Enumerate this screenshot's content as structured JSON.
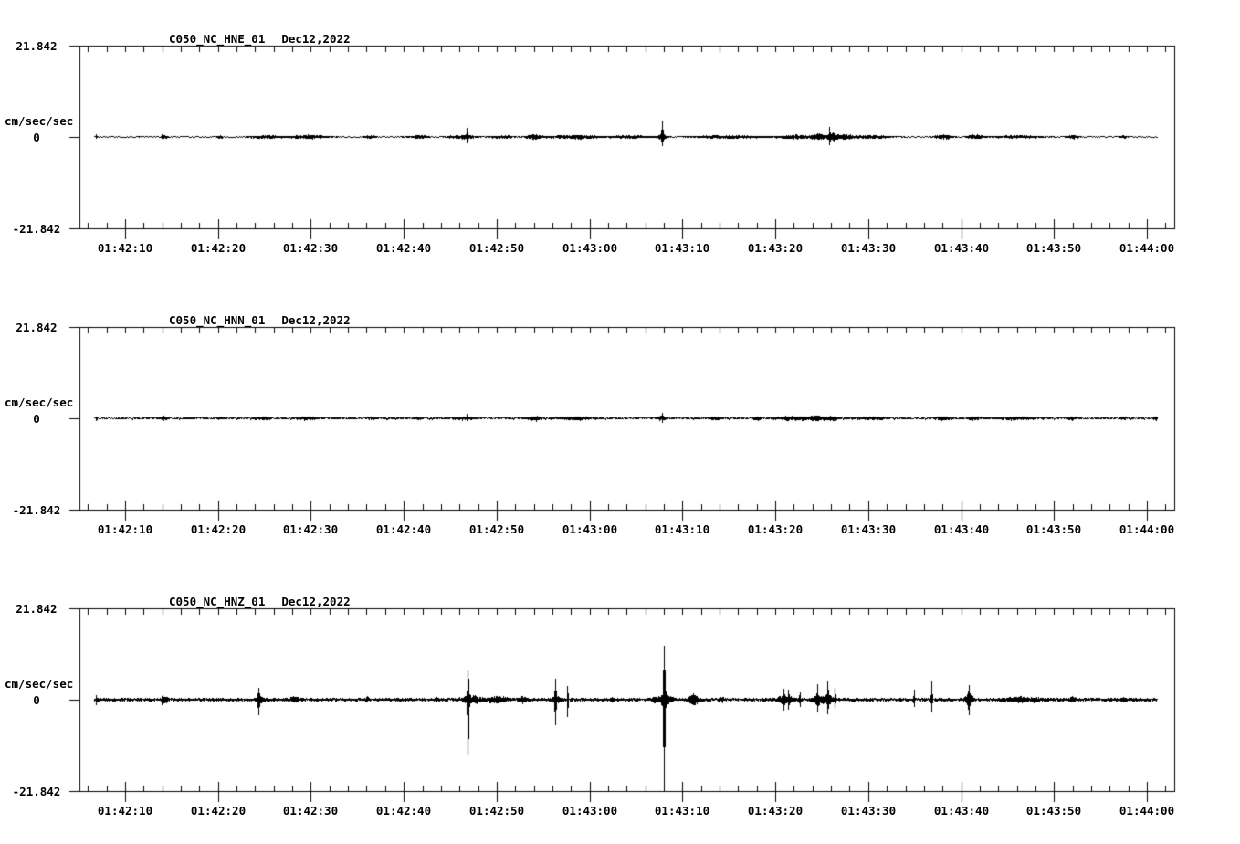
{
  "figure": {
    "background_color": "#ffffff",
    "ink_color": "#000000",
    "units": "cm/sec/sec",
    "full_scale": 21.842
  },
  "chart_data": [
    {
      "type": "line",
      "title": "C050_NC_HNE_01",
      "date": "Dec12,2022",
      "ylabel": "cm/sec/sec",
      "y_tick_labels": [
        "21.842",
        "0",
        "-21.842"
      ],
      "ylim": [
        -21.842,
        21.842
      ],
      "x_tick_labels": [
        "01:42:10",
        "01:42:20",
        "01:42:30",
        "01:42:40",
        "01:42:50",
        "01:43:00",
        "01:43:10",
        "01:43:20",
        "01:43:30",
        "01:43:40",
        "01:43:50",
        "01:44:00"
      ],
      "x_minor_tick_sec": 2,
      "x_major_tick_sec": 10,
      "trace_start_sec": -3.34,
      "trace_end_sec": 111.1,
      "seed": 11,
      "base_noise": 0.11,
      "event_fields": [
        "t_sec_after_01:42:10",
        "amp_up_cmss",
        "amp_down_cmss",
        "half_width_sec",
        "kind"
      ],
      "events": [
        [
          -3.1,
          0.43,
          0.43,
          0.08,
          "spike"
        ],
        [
          4.0,
          0.65,
          0.65,
          0.7,
          "arrow"
        ],
        [
          10.2,
          0.32,
          0.32,
          0.3,
          "burst"
        ],
        [
          15.0,
          0.43,
          0.43,
          1.5,
          "burst"
        ],
        [
          19.5,
          0.43,
          0.43,
          2.2,
          "burst"
        ],
        [
          26.3,
          0.32,
          0.32,
          0.6,
          "burst"
        ],
        [
          31.5,
          0.32,
          0.32,
          1.2,
          "burst"
        ],
        [
          36.3,
          0.43,
          0.43,
          1.5,
          "burst"
        ],
        [
          36.8,
          1.73,
          1.08,
          0.15,
          "spike"
        ],
        [
          40.5,
          0.32,
          0.32,
          1.2,
          "burst"
        ],
        [
          44.0,
          0.65,
          0.65,
          0.8,
          "burst"
        ],
        [
          48.5,
          0.43,
          0.43,
          2.8,
          "burst"
        ],
        [
          54.5,
          0.32,
          0.32,
          2.0,
          "burst"
        ],
        [
          57.8,
          3.46,
          1.73,
          0.15,
          "spike"
        ],
        [
          57.8,
          0.65,
          0.65,
          0.5,
          "burst"
        ],
        [
          65.0,
          0.32,
          0.32,
          4.0,
          "burst"
        ],
        [
          72.0,
          0.43,
          0.43,
          1.5,
          "burst"
        ],
        [
          74.5,
          0.76,
          0.76,
          0.8,
          "burst"
        ],
        [
          75.8,
          1.95,
          1.73,
          0.12,
          "spike"
        ],
        [
          76.1,
          0.86,
          0.86,
          0.6,
          "burst"
        ],
        [
          77.5,
          0.54,
          0.54,
          1.0,
          "burst"
        ],
        [
          80.5,
          0.4,
          0.4,
          1.8,
          "burst"
        ],
        [
          88.0,
          0.54,
          0.54,
          0.9,
          "burst"
        ],
        [
          91.5,
          0.54,
          0.54,
          0.8,
          "burst"
        ],
        [
          96.0,
          0.32,
          0.32,
          2.5,
          "burst"
        ],
        [
          102.0,
          0.43,
          0.43,
          0.6,
          "burst"
        ],
        [
          107.5,
          0.32,
          0.32,
          0.4,
          "burst"
        ]
      ]
    },
    {
      "type": "line",
      "title": "C050_NC_HNN_01",
      "date": "Dec12,2022",
      "ylabel": "cm/sec/sec",
      "y_tick_labels": [
        "21.842",
        "0",
        "-21.842"
      ],
      "ylim": [
        -21.842,
        21.842
      ],
      "x_tick_labels": [
        "01:42:10",
        "01:42:20",
        "01:42:30",
        "01:42:40",
        "01:42:50",
        "01:43:00",
        "01:43:10",
        "01:43:20",
        "01:43:30",
        "01:43:40",
        "01:43:50",
        "01:44:00"
      ],
      "x_minor_tick_sec": 2,
      "x_major_tick_sec": 10,
      "trace_start_sec": -3.34,
      "trace_end_sec": 111.1,
      "seed": 22,
      "base_noise": 0.17,
      "event_fields": [
        "t_sec_after_01:42:10",
        "amp_up_cmss",
        "amp_down_cmss",
        "half_width_sec",
        "kind"
      ],
      "events": [
        [
          -3.1,
          0.32,
          0.32,
          0.08,
          "spike"
        ],
        [
          4.0,
          0.54,
          0.54,
          0.7,
          "arrow"
        ],
        [
          10.2,
          0.22,
          0.22,
          0.3,
          "burst"
        ],
        [
          14.8,
          0.43,
          0.43,
          0.5,
          "burst"
        ],
        [
          19.5,
          0.32,
          0.32,
          1.0,
          "burst"
        ],
        [
          26.3,
          0.22,
          0.22,
          0.5,
          "burst"
        ],
        [
          31.5,
          0.22,
          0.22,
          0.5,
          "burst"
        ],
        [
          36.5,
          0.32,
          0.32,
          1.0,
          "burst"
        ],
        [
          36.8,
          0.65,
          0.43,
          0.1,
          "spike"
        ],
        [
          44.0,
          0.54,
          0.54,
          0.6,
          "burst"
        ],
        [
          48.5,
          0.32,
          0.32,
          2.0,
          "burst"
        ],
        [
          57.8,
          0.86,
          0.65,
          0.12,
          "spike"
        ],
        [
          57.8,
          0.43,
          0.43,
          0.5,
          "burst"
        ],
        [
          63.5,
          0.32,
          0.32,
          0.5,
          "burst"
        ],
        [
          68.0,
          0.32,
          0.32,
          0.4,
          "burst"
        ],
        [
          72.0,
          0.43,
          0.43,
          2.0,
          "burst"
        ],
        [
          74.5,
          0.54,
          0.54,
          0.8,
          "burst"
        ],
        [
          76.0,
          0.54,
          0.54,
          0.6,
          "burst"
        ],
        [
          80.5,
          0.32,
          0.32,
          1.5,
          "burst"
        ],
        [
          88.0,
          0.43,
          0.43,
          0.7,
          "burst"
        ],
        [
          91.5,
          0.43,
          0.43,
          0.7,
          "burst"
        ],
        [
          96.0,
          0.26,
          0.26,
          2.0,
          "burst"
        ],
        [
          102.0,
          0.32,
          0.32,
          0.5,
          "burst"
        ],
        [
          107.5,
          0.26,
          0.26,
          0.4,
          "burst"
        ],
        [
          111.0,
          0.43,
          0.43,
          0.3,
          "burst"
        ]
      ]
    },
    {
      "type": "line",
      "title": "C050_NC_HNZ_01",
      "date": "Dec12,2022",
      "ylabel": "cm/sec/sec",
      "y_tick_labels": [
        "21.842",
        "0",
        "-21.842"
      ],
      "ylim": [
        -21.842,
        21.842
      ],
      "x_tick_labels": [
        "01:42:10",
        "01:42:20",
        "01:42:30",
        "01:42:40",
        "01:42:50",
        "01:43:00",
        "01:43:10",
        "01:43:20",
        "01:43:30",
        "01:43:40",
        "01:43:50",
        "01:44:00"
      ],
      "x_minor_tick_sec": 2,
      "x_major_tick_sec": 10,
      "trace_start_sec": -3.34,
      "trace_end_sec": 111.1,
      "seed": 33,
      "base_noise": 0.28,
      "event_fields": [
        "t_sec_after_01:42:10",
        "amp_up_cmss",
        "amp_down_cmss",
        "half_width_sec",
        "kind"
      ],
      "events": [
        [
          -3.1,
          0.86,
          0.86,
          0.08,
          "spike"
        ],
        [
          4.0,
          1.08,
          1.08,
          0.8,
          "arrow"
        ],
        [
          14.35,
          1.95,
          3.03,
          0.15,
          "spike"
        ],
        [
          14.5,
          0.65,
          0.65,
          0.4,
          "burst"
        ],
        [
          18.2,
          0.65,
          0.65,
          0.4,
          "burst"
        ],
        [
          26.0,
          0.43,
          0.43,
          0.2,
          "burst"
        ],
        [
          33.5,
          0.43,
          0.43,
          0.2,
          "burst"
        ],
        [
          36.9,
          6.27,
          12.3,
          0.18,
          "spike"
        ],
        [
          37.3,
          0.86,
          0.86,
          1.0,
          "burst"
        ],
        [
          40.0,
          0.65,
          0.65,
          1.0,
          "burst"
        ],
        [
          42.8,
          0.65,
          0.65,
          0.4,
          "burst"
        ],
        [
          46.3,
          3.89,
          5.19,
          0.15,
          "spike"
        ],
        [
          46.4,
          0.86,
          0.86,
          0.5,
          "burst"
        ],
        [
          47.6,
          3.03,
          4.11,
          0.12,
          "spike"
        ],
        [
          52.4,
          0.43,
          0.43,
          0.2,
          "burst"
        ],
        [
          57.0,
          0.43,
          0.43,
          0.2,
          "burst"
        ],
        [
          58.0,
          11.24,
          19.89,
          0.2,
          "spike"
        ],
        [
          58.0,
          1.3,
          1.3,
          0.8,
          "burst"
        ],
        [
          61.2,
          1.3,
          1.3,
          0.5,
          "burst"
        ],
        [
          64.2,
          0.65,
          0.65,
          0.3,
          "burst"
        ],
        [
          70.9,
          1.73,
          1.73,
          0.1,
          "spike"
        ],
        [
          71.0,
          0.86,
          0.86,
          0.8,
          "burst"
        ],
        [
          71.4,
          1.73,
          1.73,
          0.1,
          "spike"
        ],
        [
          72.6,
          1.51,
          1.51,
          0.1,
          "spike"
        ],
        [
          74.5,
          2.59,
          2.16,
          0.12,
          "spike"
        ],
        [
          74.6,
          1.08,
          1.08,
          0.6,
          "burst"
        ],
        [
          75.6,
          3.46,
          2.59,
          0.13,
          "spike"
        ],
        [
          75.7,
          1.3,
          1.3,
          0.5,
          "burst"
        ],
        [
          76.4,
          2.16,
          1.73,
          0.12,
          "spike"
        ],
        [
          84.9,
          2.16,
          1.51,
          0.1,
          "spike"
        ],
        [
          86.8,
          4.11,
          2.81,
          0.12,
          "spike"
        ],
        [
          90.8,
          1.51,
          1.51,
          0.4,
          "burst"
        ],
        [
          90.8,
          1.95,
          1.95,
          0.1,
          "spike"
        ],
        [
          96.5,
          0.54,
          0.54,
          2.0,
          "burst"
        ],
        [
          102.0,
          0.54,
          0.54,
          0.3,
          "burst"
        ],
        [
          107.5,
          0.43,
          0.43,
          0.3,
          "burst"
        ]
      ]
    }
  ]
}
